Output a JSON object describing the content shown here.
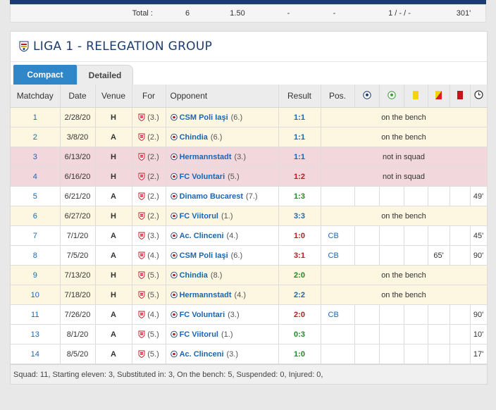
{
  "totals": {
    "label": "Total :",
    "values": [
      "6",
      "1.50",
      "-",
      "-",
      "1 / - / -",
      "301'"
    ]
  },
  "section": {
    "title": "LIGA 1 - RELEGATION GROUP"
  },
  "tabs": {
    "compact": "Compact",
    "detailed": "Detailed"
  },
  "headers": {
    "matchday": "Matchday",
    "date": "Date",
    "venue": "Venue",
    "for": "For",
    "opponent": "Opponent",
    "result": "Result",
    "pos": "Pos."
  },
  "header_icons": [
    "goals-icon",
    "assists-icon",
    "yellow-card-icon",
    "second-yellow-icon",
    "red-card-icon",
    "minutes-icon"
  ],
  "rows": [
    {
      "status": "bench",
      "md": "1",
      "date": "2/28/20",
      "venue": "H",
      "for_rank": "(3.)",
      "opp": "CSM Poli Iaşi",
      "opp_rank": "(6.)",
      "result": "1:1",
      "res_type": "draw",
      "note": "on the bench",
      "pos": "",
      "assists": "",
      "minutes": ""
    },
    {
      "status": "bench",
      "md": "2",
      "date": "3/8/20",
      "venue": "A",
      "for_rank": "(2.)",
      "opp": "Chindia",
      "opp_rank": "(6.)",
      "result": "1:1",
      "res_type": "draw",
      "note": "on the bench",
      "pos": "",
      "assists": "",
      "minutes": ""
    },
    {
      "status": "squad",
      "md": "3",
      "date": "6/13/20",
      "venue": "H",
      "for_rank": "(2.)",
      "opp": "Hermannstadt",
      "opp_rank": "(3.)",
      "result": "1:1",
      "res_type": "draw",
      "note": "not in squad",
      "pos": "",
      "assists": "",
      "minutes": ""
    },
    {
      "status": "squad",
      "md": "4",
      "date": "6/16/20",
      "venue": "H",
      "for_rank": "(2.)",
      "opp": "FC Voluntari",
      "opp_rank": "(5.)",
      "result": "1:2",
      "res_type": "loss",
      "note": "not in squad",
      "pos": "",
      "assists": "",
      "minutes": ""
    },
    {
      "status": "played",
      "md": "5",
      "date": "6/21/20",
      "venue": "A",
      "for_rank": "(2.)",
      "opp": "Dinamo Bucarest",
      "opp_rank": "(7.)",
      "result": "1:3",
      "res_type": "win",
      "note": "",
      "pos": "",
      "assists": "",
      "minutes": "49'"
    },
    {
      "status": "bench",
      "md": "6",
      "date": "6/27/20",
      "venue": "H",
      "for_rank": "(2.)",
      "opp": "FC Viitorul",
      "opp_rank": "(1.)",
      "result": "3:3",
      "res_type": "draw",
      "note": "on the bench",
      "pos": "",
      "assists": "",
      "minutes": ""
    },
    {
      "status": "played",
      "md": "7",
      "date": "7/1/20",
      "venue": "A",
      "for_rank": "(3.)",
      "opp": "Ac. Clinceni",
      "opp_rank": "(4.)",
      "result": "1:0",
      "res_type": "loss",
      "note": "",
      "pos": "CB",
      "assists": "",
      "minutes": "45'"
    },
    {
      "status": "played",
      "md": "8",
      "date": "7/5/20",
      "venue": "A",
      "for_rank": "(4.)",
      "opp": "CSM Poli Iaşi",
      "opp_rank": "(6.)",
      "result": "3:1",
      "res_type": "loss",
      "note": "",
      "pos": "CB",
      "assists": "65'",
      "minutes": "90'"
    },
    {
      "status": "bench",
      "md": "9",
      "date": "7/13/20",
      "venue": "H",
      "for_rank": "(5.)",
      "opp": "Chindia",
      "opp_rank": "(8.)",
      "result": "2:0",
      "res_type": "win",
      "note": "on the bench",
      "pos": "",
      "assists": "",
      "minutes": ""
    },
    {
      "status": "bench",
      "md": "10",
      "date": "7/18/20",
      "venue": "H",
      "for_rank": "(5.)",
      "opp": "Hermannstadt",
      "opp_rank": "(4.)",
      "result": "2:2",
      "res_type": "draw",
      "note": "on the bench",
      "pos": "",
      "assists": "",
      "minutes": ""
    },
    {
      "status": "played",
      "md": "11",
      "date": "7/26/20",
      "venue": "A",
      "for_rank": "(4.)",
      "opp": "FC Voluntari",
      "opp_rank": "(3.)",
      "result": "2:0",
      "res_type": "loss",
      "note": "",
      "pos": "CB",
      "assists": "",
      "minutes": "90'"
    },
    {
      "status": "played",
      "md": "13",
      "date": "8/1/20",
      "venue": "A",
      "for_rank": "(5.)",
      "opp": "FC Viitorul",
      "opp_rank": "(1.)",
      "result": "0:3",
      "res_type": "win",
      "note": "",
      "pos": "",
      "assists": "",
      "minutes": "10'"
    },
    {
      "status": "played",
      "md": "14",
      "date": "8/5/20",
      "venue": "A",
      "for_rank": "(5.)",
      "opp": "Ac. Clinceni",
      "opp_rank": "(3.)",
      "result": "1:0",
      "res_type": "win",
      "note": "",
      "pos": "",
      "assists": "",
      "minutes": "17'"
    }
  ],
  "summary": "Squad: 11, Starting eleven: 3, Substituted in: 3, On the bench: 5, Suspended: 0, Injured: 0,",
  "colors": {
    "bench_row": "#fdf7e1",
    "squad_row": "#f2d7dc",
    "accent": "#2f86c9",
    "link": "#1a66b3",
    "win": "#1d8a1d",
    "loss": "#c0161c"
  }
}
